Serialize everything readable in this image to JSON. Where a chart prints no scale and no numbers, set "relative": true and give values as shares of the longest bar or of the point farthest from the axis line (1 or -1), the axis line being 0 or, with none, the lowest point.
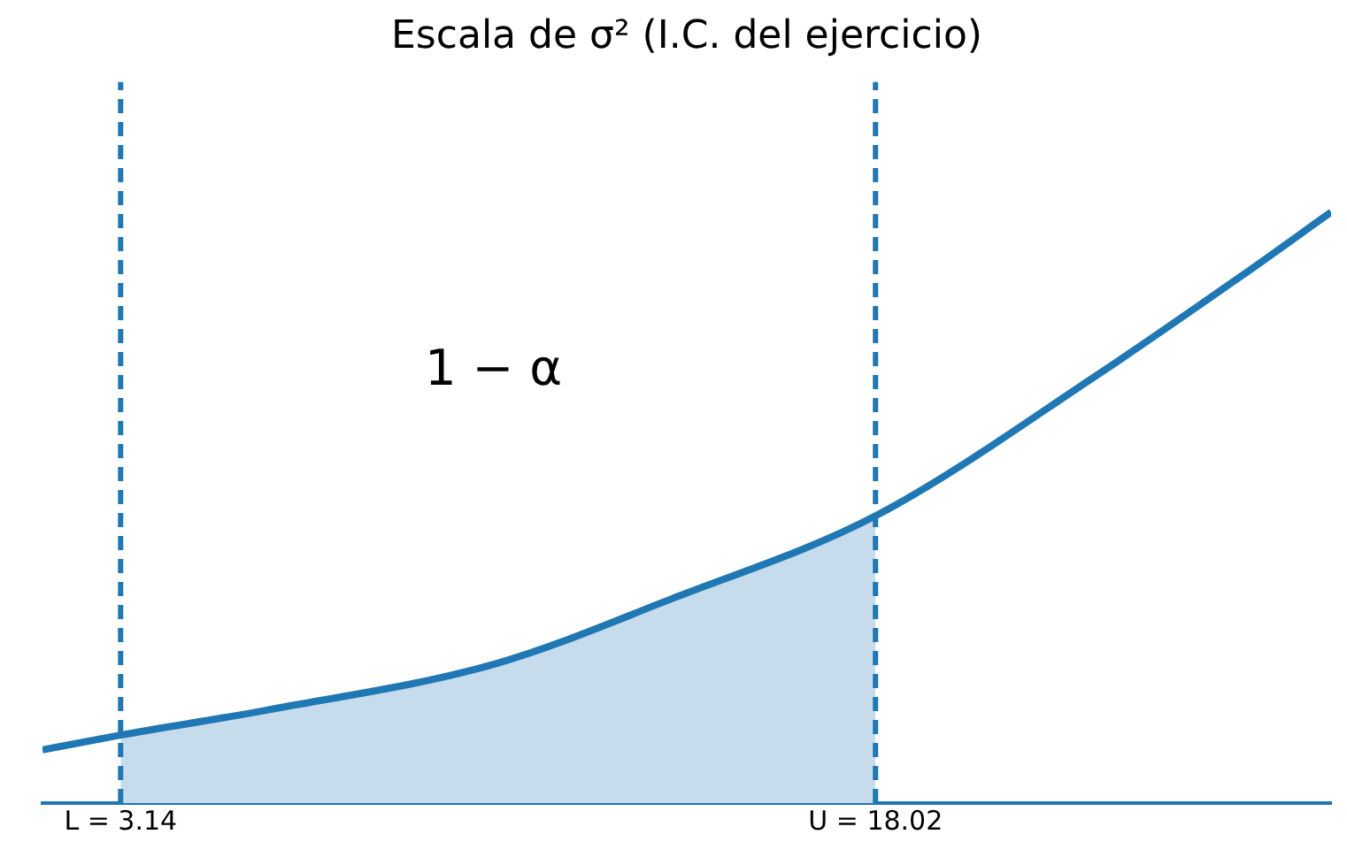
{
  "chart_data": {
    "type": "line",
    "title": "Escala de σ² (I.C. del ejercicio)",
    "relative": true,
    "xlim": [
      1.6,
      27.0
    ],
    "xticks": [
      {
        "value": 3.14,
        "label": "L = 3.14"
      },
      {
        "value": 18.02,
        "label": "U = 18.02"
      }
    ],
    "series": [
      {
        "type": "area",
        "color": "#c6dbec",
        "x": [
          3.14,
          6.0,
          10.54,
          14.04,
          18.02
        ],
        "values": [
          0.115,
          0.157,
          0.236,
          0.347,
          0.486
        ]
      },
      {
        "color": "#1f77b4",
        "x": [
          1.6,
          3.14,
          6.0,
          10.54,
          14.04,
          18.02,
          22.4,
          25.2,
          27.0
        ],
        "values": [
          0.09,
          0.115,
          0.157,
          0.236,
          0.347,
          0.486,
          0.725,
          0.89,
          1
        ]
      }
    ],
    "ref_lines": [
      {
        "axis": "x",
        "value": 3.14,
        "color": "#1f77b4",
        "line_style": "dashed"
      },
      {
        "axis": "x",
        "value": 18.02,
        "color": "#1f77b4",
        "line_style": "dashed"
      }
    ],
    "annotations": [
      "1 − α"
    ],
    "grid": false,
    "legend": false,
    "tick_labels": "x",
    "marker": "none"
  }
}
